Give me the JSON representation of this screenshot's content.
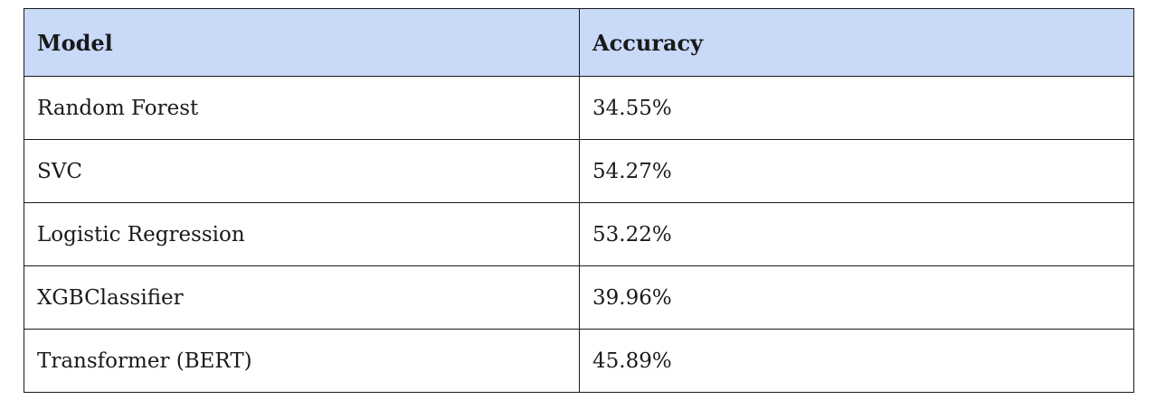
{
  "table": {
    "headers": [
      "Model",
      "Accuracy"
    ],
    "rows": [
      [
        "Random Forest",
        "34.55%"
      ],
      [
        "SVC",
        "54.27%"
      ],
      [
        "Logistic Regression",
        "53.22%"
      ],
      [
        "XGBClassifier",
        "39.96%"
      ],
      [
        "Transformer (BERT)",
        "45.89%"
      ]
    ],
    "header_background": "#c9daf8"
  }
}
